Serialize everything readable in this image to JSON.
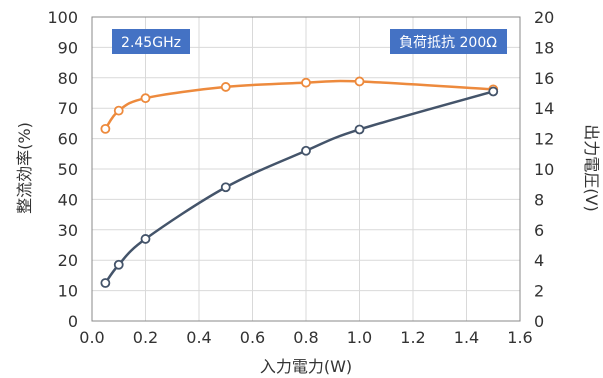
{
  "chart_data": {
    "type": "line",
    "x": [
      0.05,
      0.1,
      0.2,
      0.5,
      0.8,
      1.0,
      1.5
    ],
    "series": [
      {
        "axis": "left",
        "color": "#ed8a3d",
        "values": [
          63.2,
          69.2,
          73.3,
          77.0,
          78.4,
          78.8,
          76.2
        ]
      },
      {
        "axis": "right",
        "color": "#44546a",
        "values": [
          2.5,
          3.7,
          5.4,
          8.8,
          11.2,
          12.6,
          15.1
        ]
      }
    ],
    "xlabel": "入力電力(W)",
    "ylabel_left": "整流効率(%)",
    "ylabel_right": "出力電圧(V)",
    "xlim": [
      0,
      1.6
    ],
    "ylim_left": [
      0,
      100
    ],
    "ylim_right": [
      0,
      20
    ],
    "x_ticks": [
      "0.0",
      "0.2",
      "0.4",
      "0.6",
      "0.8",
      "1.0",
      "1.2",
      "1.4",
      "1.6"
    ],
    "y_left_ticks": [
      "0",
      "10",
      "20",
      "30",
      "40",
      "50",
      "60",
      "70",
      "80",
      "90",
      "100"
    ],
    "y_right_ticks": [
      "0",
      "2",
      "4",
      "6",
      "8",
      "10",
      "12",
      "14",
      "16",
      "18",
      "20"
    ],
    "grid": true,
    "annotations": [
      {
        "text": "2.45GHz",
        "bg": "#4472c4"
      },
      {
        "text": "負荷抵抗 200Ω",
        "bg": "#4472c4"
      }
    ]
  }
}
